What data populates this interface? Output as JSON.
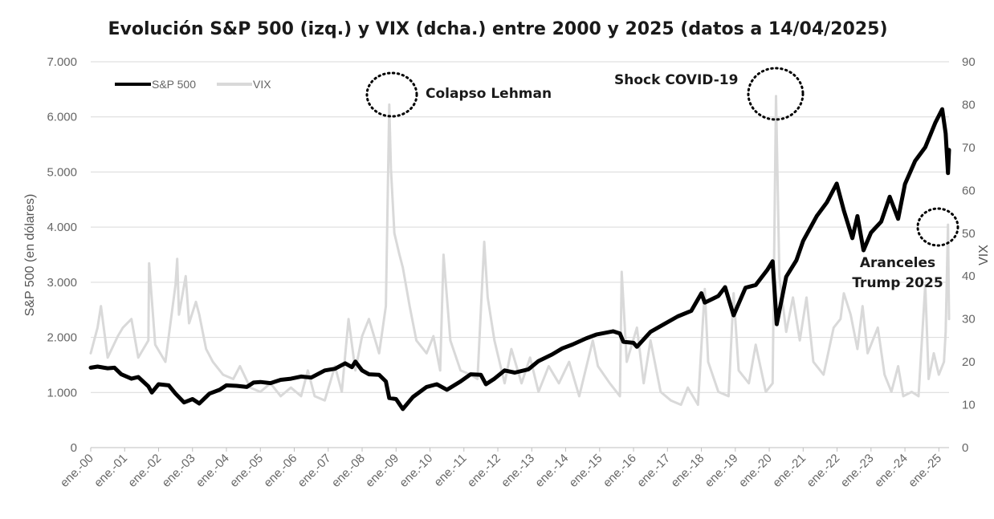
{
  "chart_data": {
    "type": "line",
    "title": "Evolución S&P 500 (izq.) y VIX (dcha.) entre 2000 y 2025 (datos a 14/04/2025)",
    "ylabel_left": "S&P 500 (en dólares)",
    "ylabel_right": "VIX",
    "ylim_left": [
      0,
      7000
    ],
    "ylim_right": [
      0,
      90
    ],
    "yticks_left": [
      "0",
      "1.000",
      "2.000",
      "3.000",
      "4.000",
      "5.000",
      "6.000",
      "7.000"
    ],
    "yticks_right": [
      "0",
      "10",
      "20",
      "30",
      "40",
      "50",
      "60",
      "70",
      "80",
      "90"
    ],
    "xlim": [
      2000.0,
      2025.3
    ],
    "xticks": [
      "ene.-00",
      "ene.-01",
      "ene.-02",
      "ene.-03",
      "ene.-04",
      "ene.-05",
      "ene.-06",
      "ene.-07",
      "ene.-08",
      "ene.-09",
      "ene.-10",
      "ene.-11",
      "ene.-12",
      "ene.-13",
      "ene.-14",
      "ene.-15",
      "ene.-16",
      "ene.-17",
      "ene.-18",
      "ene.-19",
      "ene.-20",
      "ene.-21",
      "ene.-22",
      "ene.-23",
      "ene.-24",
      "ene.-25"
    ],
    "grid": "horizontal",
    "legend_position": "top-left",
    "series": [
      {
        "name": "S&P 500",
        "axis": "left",
        "color": "#000000",
        "points": [
          [
            2000.0,
            1450
          ],
          [
            2000.2,
            1470
          ],
          [
            2000.5,
            1440
          ],
          [
            2000.7,
            1450
          ],
          [
            2000.9,
            1330
          ],
          [
            2001.2,
            1250
          ],
          [
            2001.4,
            1280
          ],
          [
            2001.7,
            1110
          ],
          [
            2001.8,
            1000
          ],
          [
            2002.0,
            1150
          ],
          [
            2002.3,
            1130
          ],
          [
            2002.5,
            980
          ],
          [
            2002.75,
            820
          ],
          [
            2003.0,
            880
          ],
          [
            2003.2,
            800
          ],
          [
            2003.5,
            980
          ],
          [
            2003.8,
            1050
          ],
          [
            2004.0,
            1130
          ],
          [
            2004.3,
            1120
          ],
          [
            2004.6,
            1100
          ],
          [
            2004.8,
            1180
          ],
          [
            2005.0,
            1190
          ],
          [
            2005.3,
            1170
          ],
          [
            2005.6,
            1230
          ],
          [
            2005.9,
            1250
          ],
          [
            2006.2,
            1290
          ],
          [
            2006.5,
            1270
          ],
          [
            2006.9,
            1400
          ],
          [
            2007.2,
            1430
          ],
          [
            2007.5,
            1530
          ],
          [
            2007.7,
            1460
          ],
          [
            2007.8,
            1560
          ],
          [
            2008.0,
            1400
          ],
          [
            2008.2,
            1330
          ],
          [
            2008.5,
            1320
          ],
          [
            2008.7,
            1200
          ],
          [
            2008.8,
            900
          ],
          [
            2009.0,
            880
          ],
          [
            2009.2,
            700
          ],
          [
            2009.5,
            920
          ],
          [
            2009.9,
            1100
          ],
          [
            2010.2,
            1150
          ],
          [
            2010.5,
            1050
          ],
          [
            2010.9,
            1200
          ],
          [
            2011.2,
            1330
          ],
          [
            2011.5,
            1320
          ],
          [
            2011.65,
            1150
          ],
          [
            2011.9,
            1250
          ],
          [
            2012.2,
            1400
          ],
          [
            2012.5,
            1360
          ],
          [
            2012.9,
            1420
          ],
          [
            2013.2,
            1570
          ],
          [
            2013.6,
            1690
          ],
          [
            2013.9,
            1800
          ],
          [
            2014.2,
            1870
          ],
          [
            2014.6,
            1980
          ],
          [
            2014.9,
            2050
          ],
          [
            2015.4,
            2110
          ],
          [
            2015.6,
            2070
          ],
          [
            2015.7,
            1920
          ],
          [
            2016.0,
            1900
          ],
          [
            2016.1,
            1830
          ],
          [
            2016.5,
            2100
          ],
          [
            2016.9,
            2240
          ],
          [
            2017.3,
            2380
          ],
          [
            2017.7,
            2480
          ],
          [
            2018.0,
            2800
          ],
          [
            2018.1,
            2630
          ],
          [
            2018.5,
            2750
          ],
          [
            2018.7,
            2910
          ],
          [
            2018.95,
            2400
          ],
          [
            2019.3,
            2900
          ],
          [
            2019.6,
            2950
          ],
          [
            2019.95,
            3230
          ],
          [
            2020.1,
            3380
          ],
          [
            2020.22,
            2240
          ],
          [
            2020.5,
            3100
          ],
          [
            2020.8,
            3400
          ],
          [
            2021.0,
            3750
          ],
          [
            2021.4,
            4200
          ],
          [
            2021.7,
            4450
          ],
          [
            2021.99,
            4790
          ],
          [
            2022.2,
            4300
          ],
          [
            2022.45,
            3800
          ],
          [
            2022.6,
            4200
          ],
          [
            2022.78,
            3580
          ],
          [
            2023.0,
            3900
          ],
          [
            2023.3,
            4100
          ],
          [
            2023.55,
            4550
          ],
          [
            2023.8,
            4150
          ],
          [
            2024.0,
            4780
          ],
          [
            2024.3,
            5200
          ],
          [
            2024.6,
            5450
          ],
          [
            2024.9,
            5900
          ],
          [
            2025.1,
            6140
          ],
          [
            2025.2,
            5700
          ],
          [
            2025.27,
            4980
          ],
          [
            2025.3,
            5400
          ]
        ]
      },
      {
        "name": "VIX",
        "axis": "right",
        "color": "#d9d9d9",
        "points": [
          [
            2000.0,
            22
          ],
          [
            2000.2,
            28
          ],
          [
            2000.3,
            33
          ],
          [
            2000.5,
            21
          ],
          [
            2000.8,
            26
          ],
          [
            2000.95,
            28
          ],
          [
            2001.2,
            30
          ],
          [
            2001.4,
            21
          ],
          [
            2001.7,
            25
          ],
          [
            2001.72,
            43
          ],
          [
            2001.9,
            24
          ],
          [
            2002.2,
            20
          ],
          [
            2002.5,
            38
          ],
          [
            2002.55,
            44
          ],
          [
            2002.6,
            31
          ],
          [
            2002.8,
            40
          ],
          [
            2002.9,
            29
          ],
          [
            2003.1,
            34
          ],
          [
            2003.2,
            31
          ],
          [
            2003.4,
            23
          ],
          [
            2003.6,
            20
          ],
          [
            2003.9,
            17
          ],
          [
            2004.2,
            16
          ],
          [
            2004.4,
            19
          ],
          [
            2004.7,
            14
          ],
          [
            2005.0,
            13
          ],
          [
            2005.3,
            15
          ],
          [
            2005.6,
            12
          ],
          [
            2005.9,
            14
          ],
          [
            2006.2,
            12
          ],
          [
            2006.4,
            18
          ],
          [
            2006.6,
            12
          ],
          [
            2006.9,
            11
          ],
          [
            2007.2,
            19
          ],
          [
            2007.4,
            13
          ],
          [
            2007.6,
            30
          ],
          [
            2007.8,
            18
          ],
          [
            2008.0,
            26
          ],
          [
            2008.2,
            30
          ],
          [
            2008.5,
            22
          ],
          [
            2008.7,
            33
          ],
          [
            2008.8,
            80
          ],
          [
            2008.85,
            65
          ],
          [
            2008.95,
            50
          ],
          [
            2009.1,
            45
          ],
          [
            2009.2,
            42
          ],
          [
            2009.4,
            33
          ],
          [
            2009.6,
            25
          ],
          [
            2009.9,
            22
          ],
          [
            2010.1,
            26
          ],
          [
            2010.3,
            18
          ],
          [
            2010.4,
            45
          ],
          [
            2010.6,
            25
          ],
          [
            2010.9,
            18
          ],
          [
            2011.2,
            17
          ],
          [
            2011.4,
            16
          ],
          [
            2011.6,
            48
          ],
          [
            2011.7,
            35
          ],
          [
            2011.9,
            25
          ],
          [
            2012.2,
            15
          ],
          [
            2012.4,
            23
          ],
          [
            2012.7,
            15
          ],
          [
            2012.95,
            21
          ],
          [
            2013.2,
            13
          ],
          [
            2013.5,
            19
          ],
          [
            2013.8,
            15
          ],
          [
            2014.1,
            20
          ],
          [
            2014.4,
            12
          ],
          [
            2014.8,
            25
          ],
          [
            2014.95,
            19
          ],
          [
            2015.3,
            15
          ],
          [
            2015.6,
            12
          ],
          [
            2015.65,
            41
          ],
          [
            2015.8,
            20
          ],
          [
            2016.1,
            28
          ],
          [
            2016.3,
            15
          ],
          [
            2016.5,
            25
          ],
          [
            2016.8,
            13
          ],
          [
            2017.1,
            11
          ],
          [
            2017.4,
            10
          ],
          [
            2017.6,
            14
          ],
          [
            2017.9,
            10
          ],
          [
            2018.1,
            37
          ],
          [
            2018.2,
            20
          ],
          [
            2018.5,
            13
          ],
          [
            2018.8,
            12
          ],
          [
            2018.95,
            36
          ],
          [
            2019.1,
            18
          ],
          [
            2019.4,
            15
          ],
          [
            2019.6,
            24
          ],
          [
            2019.9,
            13
          ],
          [
            2020.1,
            15
          ],
          [
            2020.2,
            82
          ],
          [
            2020.3,
            40
          ],
          [
            2020.5,
            27
          ],
          [
            2020.7,
            35
          ],
          [
            2020.9,
            25
          ],
          [
            2021.1,
            35
          ],
          [
            2021.3,
            20
          ],
          [
            2021.6,
            17
          ],
          [
            2021.9,
            28
          ],
          [
            2022.1,
            30
          ],
          [
            2022.2,
            36
          ],
          [
            2022.4,
            31
          ],
          [
            2022.6,
            23
          ],
          [
            2022.75,
            33
          ],
          [
            2022.9,
            22
          ],
          [
            2023.2,
            28
          ],
          [
            2023.4,
            17
          ],
          [
            2023.6,
            13
          ],
          [
            2023.8,
            19
          ],
          [
            2023.95,
            12
          ],
          [
            2024.2,
            13
          ],
          [
            2024.4,
            12
          ],
          [
            2024.6,
            38
          ],
          [
            2024.7,
            16
          ],
          [
            2024.85,
            22
          ],
          [
            2025.0,
            17
          ],
          [
            2025.15,
            20
          ],
          [
            2025.2,
            27
          ],
          [
            2025.27,
            52
          ],
          [
            2025.3,
            30
          ]
        ]
      }
    ],
    "annotations": [
      {
        "text": "Colapso Lehman",
        "x": 2008.8,
        "axis": "right",
        "y": 80
      },
      {
        "text": "Shock COVID-19",
        "x": 2020.2,
        "axis": "right",
        "y": 82
      },
      {
        "text": "Aranceles",
        "text2": "Trump 2025",
        "x": 2025.27,
        "axis": "right",
        "y": 52
      }
    ]
  }
}
